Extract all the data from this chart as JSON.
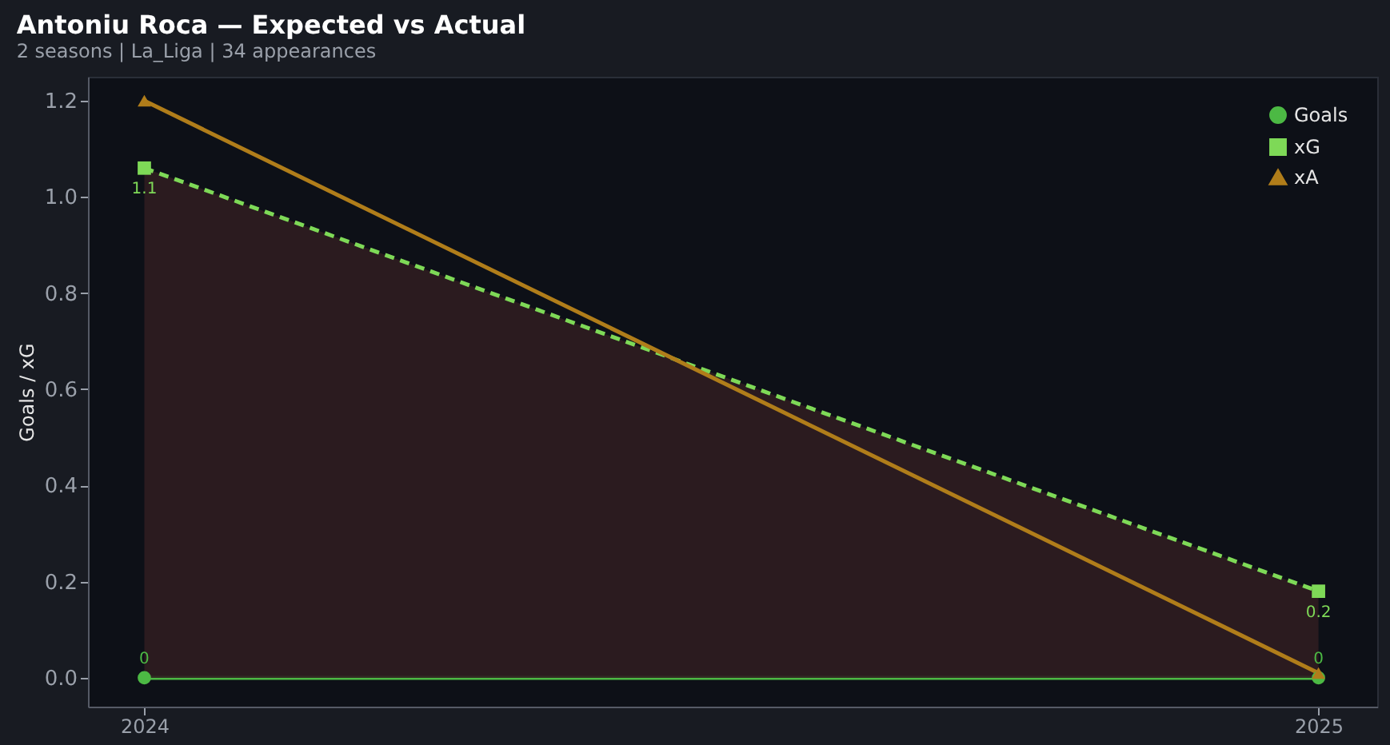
{
  "chart_data": {
    "type": "line",
    "title": "Antoniu Roca — Expected vs Actual",
    "subtitle": "2 seasons | La_Liga | 34 appearances",
    "ylabel": "Goals / xG",
    "x": [
      2024,
      2025
    ],
    "xlim": [
      2023.952,
      2025.05
    ],
    "xticks": [
      2024,
      2025
    ],
    "ylim": [
      -0.06,
      1.25
    ],
    "yticks": [
      {
        "value": 0,
        "label": "0.0"
      },
      0.2,
      0.4,
      0.6,
      0.8,
      {
        "value": 1,
        "label": "1.0"
      },
      1.2
    ],
    "series": [
      {
        "name": "Goals",
        "color": "#4cb944",
        "values": [
          0,
          0
        ],
        "marker": "circle",
        "line_style": "solid",
        "value_labels": [
          "0",
          "0"
        ]
      },
      {
        "name": "xG",
        "color": "#7ed957",
        "values": [
          1.06,
          0.18
        ],
        "marker": "square",
        "line_style": "dashed",
        "value_labels": [
          "1.1",
          "0.2"
        ],
        "lower": [
          0,
          0
        ],
        "upper": [
          1.06,
          0.18
        ]
      },
      {
        "name": "xA",
        "color": "#b07d1a",
        "values": [
          1.2,
          0.01
        ],
        "marker": "triangle",
        "line_style": "solid"
      }
    ],
    "grid": false,
    "legend": "top right"
  }
}
